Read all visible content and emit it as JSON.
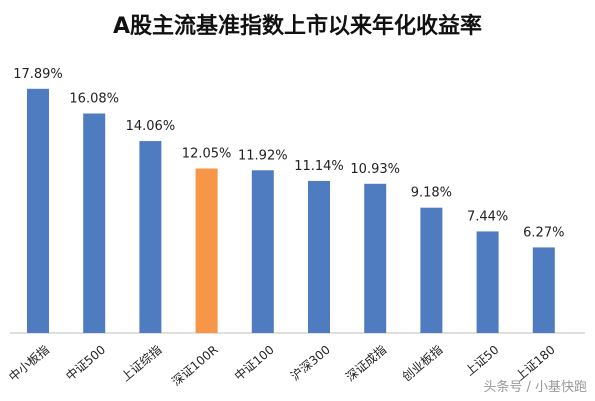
{
  "chart_data": {
    "type": "bar",
    "title": "A股主流基准指数上市以来年化收益率",
    "categories": [
      "中小板指",
      "中证500",
      "上证综指",
      "深证100R",
      "中证100",
      "沪深300",
      "深证成指",
      "创业板指",
      "上证50",
      "上证180"
    ],
    "values": [
      17.89,
      16.08,
      14.06,
      12.05,
      11.92,
      11.14,
      10.93,
      9.18,
      7.44,
      6.27
    ],
    "value_labels": [
      "17.89%",
      "16.08%",
      "14.06%",
      "12.05%",
      "11.92%",
      "11.14%",
      "10.93%",
      "9.18%",
      "7.44%",
      "6.27%"
    ],
    "ylim": [
      0,
      18.9
    ],
    "grid": false,
    "colors": {
      "default": "#4f7cc0",
      "highlight": "#f79646",
      "axis": "#bfbfbf"
    },
    "highlight_index": 3
  },
  "watermark": "头条号 / 小基快跑"
}
